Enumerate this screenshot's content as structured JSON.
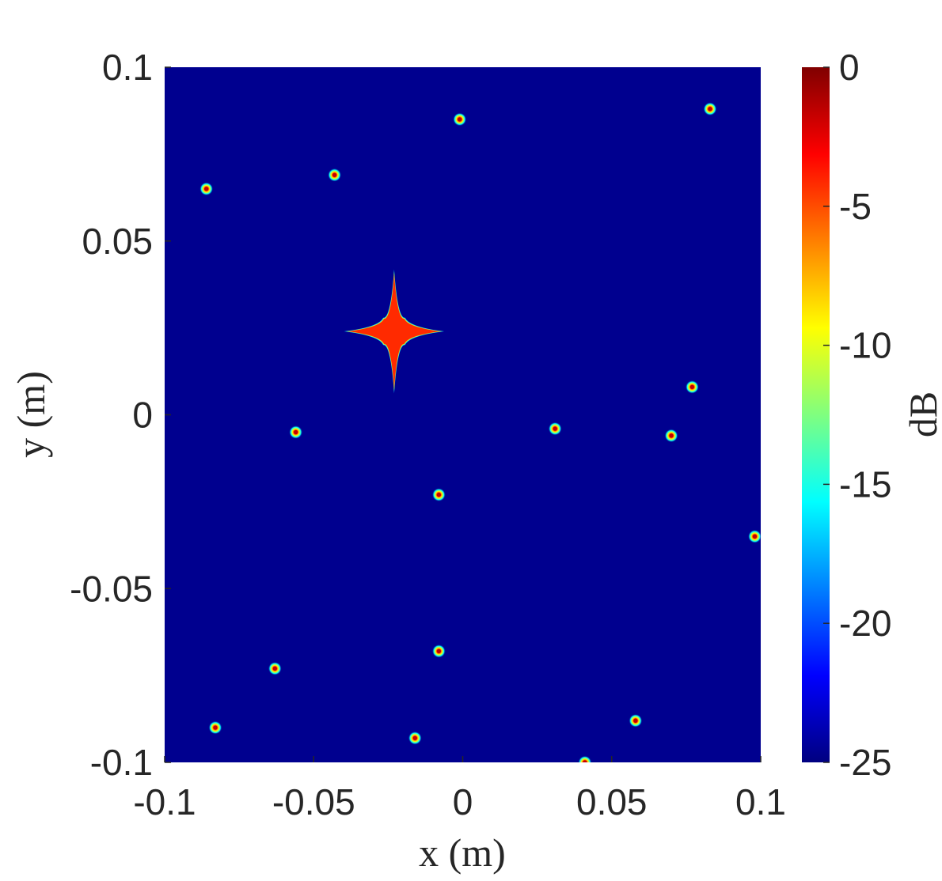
{
  "chart_data": {
    "type": "heatmap",
    "xlabel": "x (m)",
    "ylabel": "y (m)",
    "xlim": [
      -0.1,
      0.1
    ],
    "ylim": [
      -0.1,
      0.1
    ],
    "x_ticks": [
      "-0.1",
      "-0.05",
      "0",
      "0.05",
      "0.1"
    ],
    "y_ticks": [
      "0.1",
      "0.05",
      "0",
      "-0.05",
      "-0.1"
    ],
    "x_tick_values": [
      -0.1,
      -0.05,
      0,
      0.05,
      0.1
    ],
    "y_tick_values": [
      0.1,
      0.05,
      0,
      -0.05,
      -0.1
    ],
    "colorbar": {
      "label": "dB",
      "colormap": "jet",
      "range": [
        -25,
        0
      ],
      "ticks": [
        "0",
        "-5",
        "-10",
        "-15",
        "-20",
        "-25"
      ],
      "tick_values": [
        0,
        -5,
        -10,
        -15,
        -20,
        -25
      ]
    },
    "background_db": -25,
    "main_target": {
      "shape": "four-pointed star",
      "x": -0.023,
      "y": 0.024,
      "arm_x": 0.016,
      "arm_y": 0.017,
      "level_db": -2
    },
    "point_targets": [
      {
        "x": -0.086,
        "y": 0.065
      },
      {
        "x": -0.043,
        "y": 0.069
      },
      {
        "x": -0.001,
        "y": 0.085
      },
      {
        "x": 0.083,
        "y": 0.088
      },
      {
        "x": -0.056,
        "y": -0.005
      },
      {
        "x": 0.031,
        "y": -0.004
      },
      {
        "x": 0.077,
        "y": 0.008
      },
      {
        "x": 0.07,
        "y": -0.006
      },
      {
        "x": -0.008,
        "y": -0.023
      },
      {
        "x": 0.098,
        "y": -0.035
      },
      {
        "x": -0.063,
        "y": -0.073
      },
      {
        "x": -0.008,
        "y": -0.068
      },
      {
        "x": -0.083,
        "y": -0.09
      },
      {
        "x": -0.016,
        "y": -0.093
      },
      {
        "x": 0.058,
        "y": -0.088
      },
      {
        "x": 0.041,
        "y": -0.1
      }
    ]
  }
}
